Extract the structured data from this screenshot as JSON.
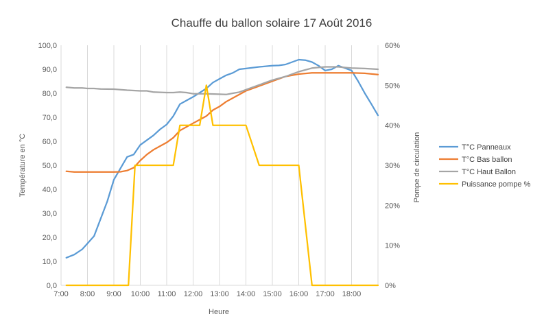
{
  "chart_data": {
    "type": "line",
    "title": "Chauffe du ballon solaire 17 Août 2016",
    "xlabel": "Heure",
    "ylabel": "Température en °C",
    "y2label": "Pompe de circulation",
    "xlim": [
      7.0,
      19.0
    ],
    "ylim": [
      0,
      100
    ],
    "y2lim": [
      0,
      60
    ],
    "x_ticks": [
      7,
      8,
      9,
      10,
      11,
      12,
      13,
      14,
      15,
      16,
      17,
      18
    ],
    "x_tick_labels": [
      "7:00",
      "8:00",
      "9:00",
      "10:00",
      "11:00",
      "12:00",
      "13:00",
      "14:00",
      "15:00",
      "16:00",
      "17:00",
      "18:00"
    ],
    "y_tick_labels": [
      "0,0",
      "10,0",
      "20,0",
      "30,0",
      "40,0",
      "50,0",
      "60,0",
      "70,0",
      "80,0",
      "90,0",
      "100,0"
    ],
    "y2_tick_labels": [
      "0%",
      "10%",
      "20%",
      "30%",
      "40%",
      "50%",
      "60%"
    ],
    "grid": "vertical",
    "legend_position": "right",
    "series": [
      {
        "name": "T°C Panneaux",
        "axis": "left",
        "color": "#5b9bd5",
        "x": [
          7.2,
          7.5,
          7.8,
          8.25,
          8.75,
          9.0,
          9.5,
          9.75,
          10.0,
          10.5,
          10.75,
          11.0,
          11.25,
          11.5,
          11.75,
          12.0,
          12.5,
          12.75,
          13.0,
          13.25,
          13.5,
          13.75,
          14.0,
          14.5,
          15.0,
          15.25,
          15.5,
          15.75,
          16.0,
          16.25,
          16.5,
          16.75,
          17.0,
          17.25,
          17.5,
          17.75,
          18.0,
          18.25,
          18.5,
          18.75,
          19.0
        ],
        "y": [
          11.5,
          12.8,
          15.0,
          20.5,
          35.0,
          44.0,
          53.5,
          54.5,
          58.5,
          62.5,
          65.0,
          67.0,
          70.5,
          75.5,
          77.0,
          78.5,
          82.0,
          84.5,
          86.0,
          87.5,
          88.5,
          90.0,
          90.3,
          91.0,
          91.5,
          91.6,
          92.0,
          93.0,
          94.0,
          93.8,
          93.0,
          91.5,
          89.5,
          90.0,
          91.5,
          90.5,
          89.5,
          85.0,
          80.0,
          75.5,
          70.8
        ]
      },
      {
        "name": "T°C Bas ballon",
        "axis": "left",
        "color": "#ed7d31",
        "x": [
          7.2,
          7.5,
          7.8,
          8.25,
          8.75,
          9.0,
          9.25,
          9.5,
          9.75,
          10.0,
          10.25,
          10.5,
          10.75,
          11.0,
          11.25,
          11.5,
          11.75,
          12.0,
          12.25,
          12.5,
          12.75,
          13.0,
          13.25,
          13.5,
          13.75,
          14.0,
          14.5,
          15.0,
          15.25,
          15.5,
          15.75,
          16.0,
          16.5,
          17.0,
          17.5,
          18.0,
          18.5,
          19.0
        ],
        "y": [
          47.5,
          47.2,
          47.2,
          47.2,
          47.2,
          47.2,
          47.3,
          47.8,
          49.0,
          52.0,
          54.5,
          56.5,
          58.0,
          59.5,
          61.5,
          64.5,
          66.0,
          67.5,
          69.0,
          70.5,
          73.0,
          74.5,
          76.5,
          78.0,
          79.5,
          81.0,
          83.0,
          85.0,
          86.0,
          87.0,
          87.5,
          88.0,
          88.5,
          88.5,
          88.5,
          88.5,
          88.3,
          87.8
        ]
      },
      {
        "name": "T°C Haut Ballon",
        "axis": "left",
        "color": "#a5a5a5",
        "x": [
          7.2,
          7.5,
          7.8,
          8.0,
          8.25,
          8.5,
          9.0,
          9.5,
          10.0,
          10.25,
          10.5,
          11.0,
          11.25,
          11.5,
          11.75,
          12.0,
          12.5,
          13.0,
          13.25,
          13.5,
          13.75,
          14.0,
          14.5,
          15.0,
          15.5,
          16.0,
          16.5,
          17.0,
          17.5,
          18.0,
          18.5,
          19.0
        ],
        "y": [
          82.5,
          82.2,
          82.2,
          82.0,
          82.0,
          81.8,
          81.7,
          81.3,
          81.0,
          81.0,
          80.5,
          80.3,
          80.3,
          80.5,
          80.3,
          79.8,
          79.8,
          79.6,
          79.5,
          80.0,
          80.5,
          81.5,
          83.5,
          85.5,
          87.0,
          89.0,
          90.5,
          91.0,
          91.0,
          90.5,
          90.3,
          90.0
        ]
      },
      {
        "name": "Puissance pompe %",
        "axis": "right",
        "color": "#ffc000",
        "x": [
          7.2,
          9.55,
          9.8,
          10.0,
          11.25,
          11.5,
          12.25,
          12.5,
          12.75,
          14.0,
          14.5,
          16.0,
          16.5,
          19.0
        ],
        "y": [
          0,
          0,
          30,
          30,
          30,
          40,
          40,
          50,
          40,
          40,
          30,
          30,
          0,
          0
        ]
      }
    ]
  }
}
